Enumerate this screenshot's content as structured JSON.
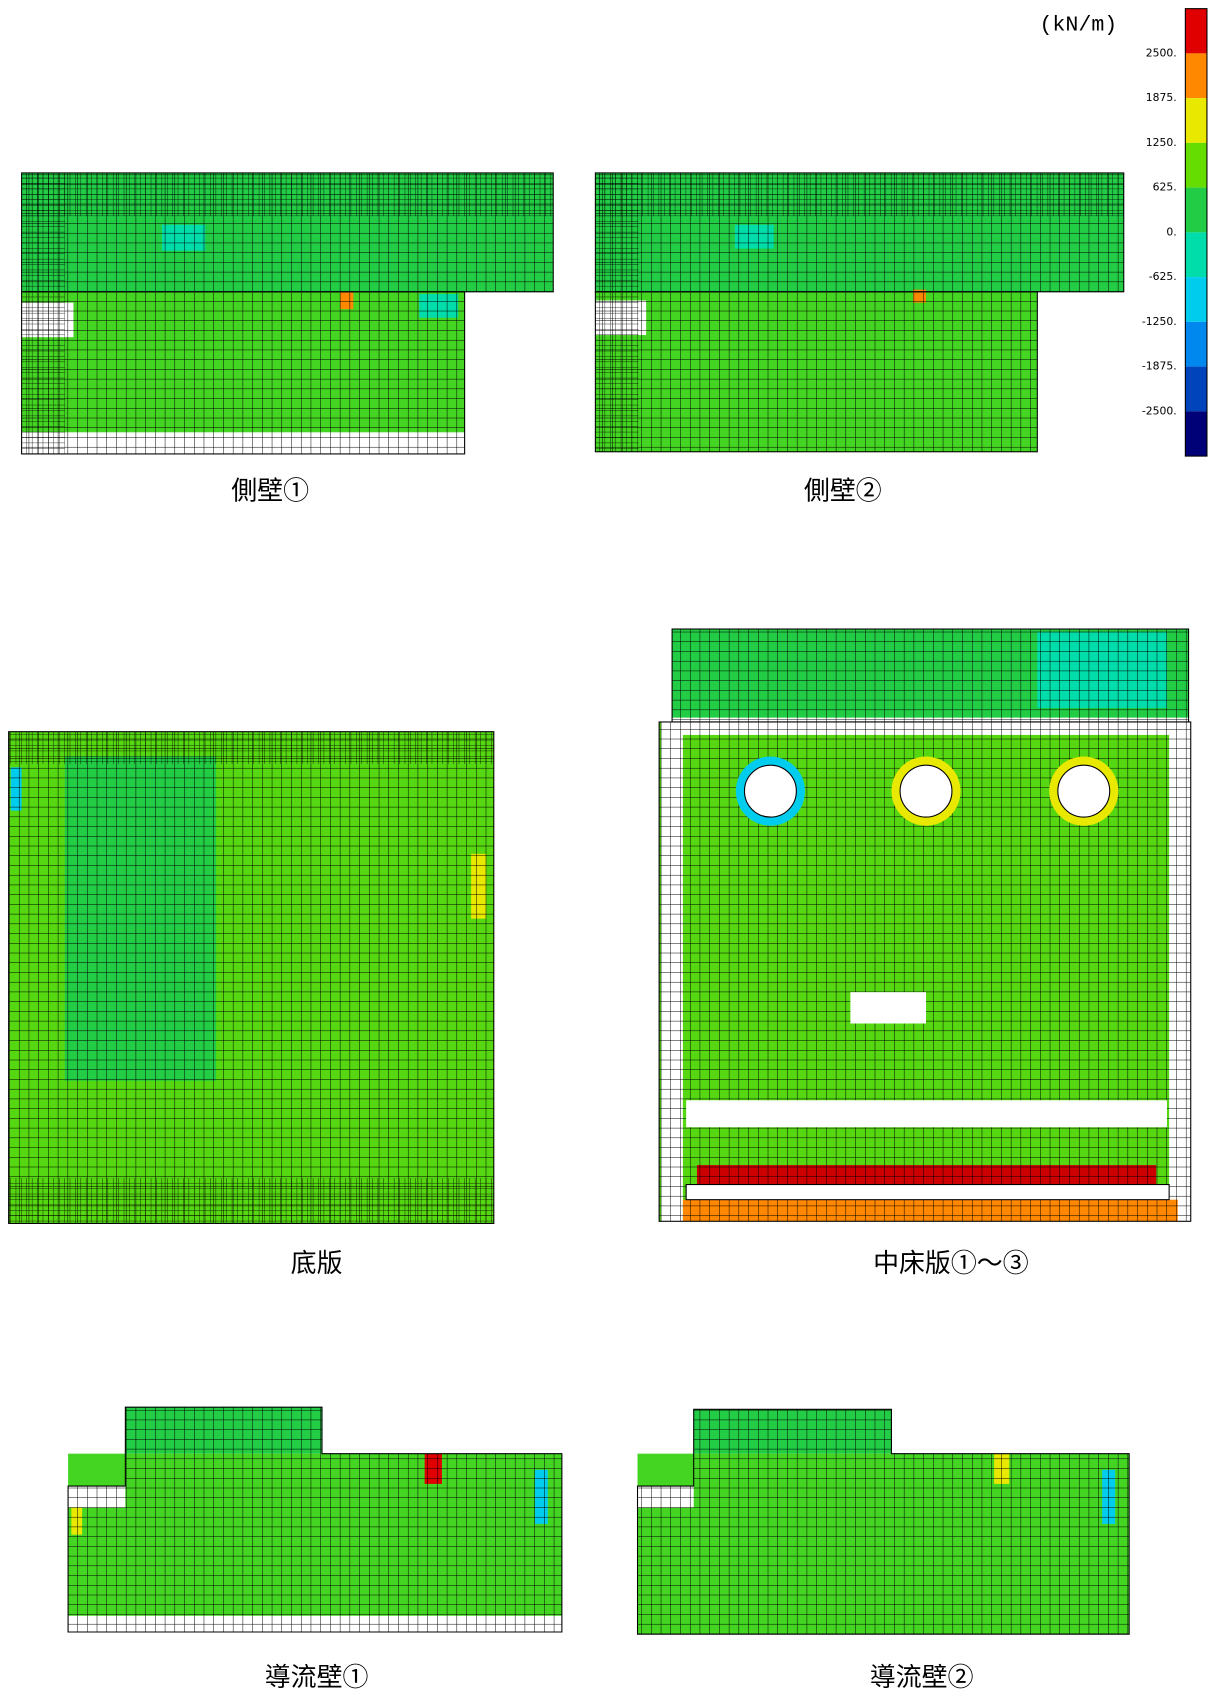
{
  "legend": {
    "unit": "(kN/m)",
    "labels": [
      "2500.",
      "1875.",
      "1250.",
      "625.",
      "0.",
      "-625.",
      "-1250.",
      "-1875.",
      "-2500."
    ],
    "colors": [
      "#e00000",
      "#ff8800",
      "#e8e800",
      "#66dd00",
      "#22cc44",
      "#00ddaa",
      "#00ccee",
      "#0088ee",
      "#0044bb",
      "#000077"
    ]
  },
  "panels": [
    {
      "caption": "側壁①"
    },
    {
      "caption": "側壁②"
    },
    {
      "caption": "底版"
    },
    {
      "caption": "中床版①～③"
    },
    {
      "caption": "導流壁①"
    },
    {
      "caption": "導流壁②"
    }
  ]
}
